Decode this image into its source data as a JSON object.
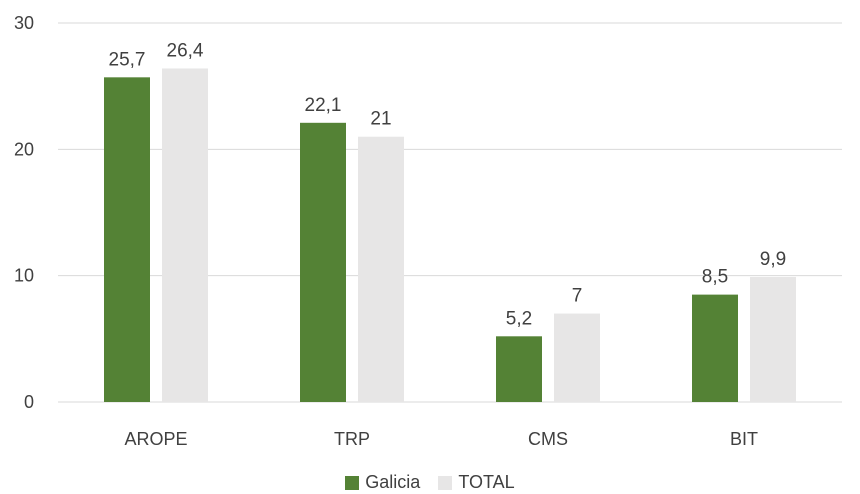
{
  "chart_data": {
    "type": "bar",
    "categories": [
      "AROPE",
      "TRP",
      "CMS",
      "BIT"
    ],
    "series": [
      {
        "name": "Galicia",
        "values": [
          25.7,
          22.1,
          5.2,
          8.5
        ],
        "labels": [
          "25,7",
          "22,1",
          "5,2",
          "8,5"
        ],
        "color": "#548235"
      },
      {
        "name": "TOTAL",
        "values": [
          26.4,
          21,
          7,
          9.9
        ],
        "labels": [
          "26,4",
          "21",
          "7",
          "9,9"
        ],
        "color": "#e7e6e6"
      }
    ],
    "yticks": [
      "0",
      "10",
      "20",
      "30"
    ],
    "ylim": [
      0,
      30
    ],
    "grid": true,
    "legend_position": "bottom-center"
  },
  "colors": {
    "grid": "#d9d9d9",
    "text": "#404040"
  }
}
